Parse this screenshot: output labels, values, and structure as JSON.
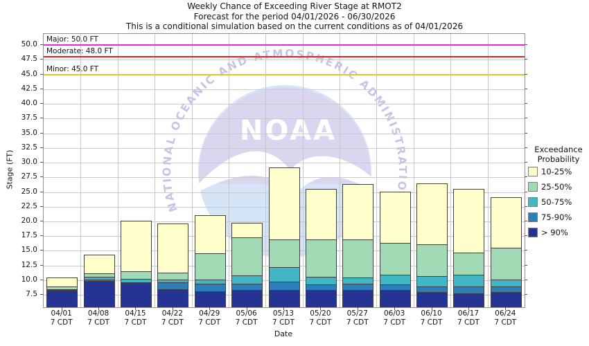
{
  "titles": {
    "line1": "Weekly Chance of Exceeding River Stage at RMOT2",
    "line2": "Forecast for the period 04/01/2026 - 06/30/2026",
    "line3": "This is a conditional simulation based on the current conditions as of 04/01/2026"
  },
  "legend": {
    "title_line1": "Exceedance",
    "title_line2": "Probability",
    "items": [
      {
        "label": "10-25%",
        "color": "#ffffcc"
      },
      {
        "label": "25-50%",
        "color": "#a1dab4"
      },
      {
        "label": "50-75%",
        "color": "#41b6c4"
      },
      {
        "label": "75-90%",
        "color": "#2c7fb8"
      },
      {
        "label": "> 90%",
        "color": "#253494"
      }
    ]
  },
  "watermark": {
    "circle_text": "NATIONAL OCEANIC AND ATMOSPHERIC ADMINISTRATION",
    "center_text": "NOAA"
  },
  "chart_data": {
    "type": "bar",
    "stacked": true,
    "title": "Weekly Chance of Exceeding River Stage at RMOT2",
    "xlabel": "Date",
    "ylabel": "Stage (FT)",
    "ylim": [
      5.4,
      51.9
    ],
    "grid": true,
    "legend_position": "right",
    "y_ticks": [
      7.5,
      10,
      12.5,
      15,
      17.5,
      20,
      22.5,
      25,
      27.5,
      30,
      32.5,
      35,
      37.5,
      40,
      42.5,
      45,
      47.5,
      50
    ],
    "categories": [
      "04/01",
      "04/08",
      "04/15",
      "04/22",
      "04/29",
      "05/06",
      "05/13",
      "05/20",
      "05/27",
      "06/03",
      "06/10",
      "06/17",
      "06/24"
    ],
    "x_tick_sub_label": "7 CDT",
    "series_note": "values are the top stage (FT) of each exceedance-probability band; bands stack downward, lowest band extends to ylim[0]",
    "series": [
      {
        "name": "10-25%",
        "values": [
          10.5,
          14.3,
          20.1,
          19.6,
          21.1,
          19.8,
          29.2,
          25.5,
          26.4,
          25.1,
          26.5,
          25.5,
          24.1
        ]
      },
      {
        "name": "25-50%",
        "values": [
          9.1,
          11.3,
          11.6,
          11.4,
          14.7,
          17.4,
          17.1,
          17.0,
          17.0,
          16.5,
          16.2,
          14.8,
          15.6
        ]
      },
      {
        "name": "50-75%",
        "values": [
          8.6,
          10.7,
          10.4,
          10.2,
          10.2,
          10.9,
          12.4,
          10.7,
          10.6,
          11.0,
          10.8,
          11.0,
          10.2
        ]
      },
      {
        "name": "75-90%",
        "values": [
          8.5,
          10.2,
          9.8,
          9.7,
          9.5,
          9.5,
          9.9,
          9.4,
          9.5,
          9.4,
          9.0,
          9.0,
          9.0
        ]
      },
      {
        "name": "> 90%",
        "values": [
          8.4,
          10.0,
          9.7,
          8.6,
          8.2,
          8.5,
          8.4,
          8.4,
          8.5,
          8.5,
          8.1,
          7.9,
          8.1
        ]
      }
    ],
    "flood_lines": [
      {
        "label": "Major: 50.0 FT",
        "value": 50.0,
        "color": "#ee22ee"
      },
      {
        "label": "Moderate: 48.0 FT",
        "value": 48.0,
        "color": "#f42020"
      },
      {
        "label": "Minor: 45.0 FT",
        "value": 45.0,
        "color": "#e6c22e"
      }
    ]
  }
}
